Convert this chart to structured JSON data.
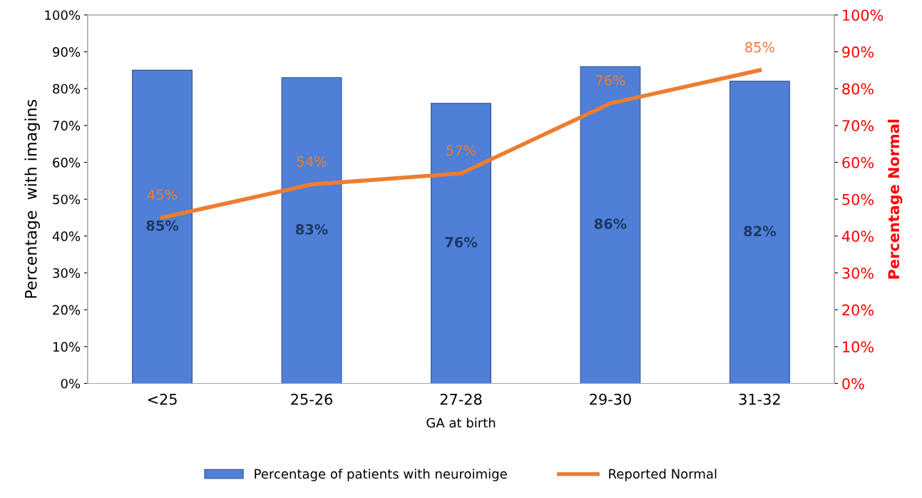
{
  "chart_data": {
    "type": "bar",
    "xlabel": "GA at birth",
    "ylabel": "Percentage  with imagins",
    "y2label": "Percentage Normal",
    "categories": [
      "<25",
      "25-26",
      "27-28",
      "29-30",
      "31-32"
    ],
    "series": [
      {
        "name": "Percentage of patients with neuroimige",
        "color": "#4f7fd6",
        "values": [
          85,
          83,
          76,
          86,
          82
        ],
        "value_labels": [
          "85%",
          "83%",
          "76%",
          "86%",
          "82%"
        ]
      },
      {
        "name": "Reported Normal",
        "type": "line",
        "axis": "y2",
        "color": "#ed7d31",
        "values": [
          45,
          54,
          57,
          76,
          85
        ],
        "value_labels": [
          "45%",
          "54%",
          "57%",
          "76%",
          "85%"
        ]
      }
    ],
    "ylim": [
      0,
      100
    ],
    "yticks": [
      {
        "value": 0,
        "label": "0%"
      },
      {
        "value": 10,
        "label": "10%"
      },
      {
        "value": 20,
        "label": "20%"
      },
      {
        "value": 30,
        "label": "30%"
      },
      {
        "value": 40,
        "label": "40%"
      },
      {
        "value": 50,
        "label": "50%"
      },
      {
        "value": 60,
        "label": "60%"
      },
      {
        "value": 70,
        "label": "70%"
      },
      {
        "value": 80,
        "label": "80%"
      },
      {
        "value": 90,
        "label": "90%"
      },
      {
        "value": 100,
        "label": "100%"
      }
    ],
    "y2lim": [
      0,
      100
    ],
    "y2ticks": [
      {
        "value": 0,
        "label": "0%"
      },
      {
        "value": 10,
        "label": "10%"
      },
      {
        "value": 20,
        "label": "20%"
      },
      {
        "value": 30,
        "label": "30%"
      },
      {
        "value": 40,
        "label": "40%"
      },
      {
        "value": 50,
        "label": "50%"
      },
      {
        "value": 60,
        "label": "60%"
      },
      {
        "value": 70,
        "label": "70%"
      },
      {
        "value": 80,
        "label": "80%"
      },
      {
        "value": 90,
        "label": "90%"
      },
      {
        "value": 100,
        "label": "100%"
      }
    ],
    "grid": false,
    "legend": "bottom",
    "marker": "none",
    "line_style": "solid"
  }
}
